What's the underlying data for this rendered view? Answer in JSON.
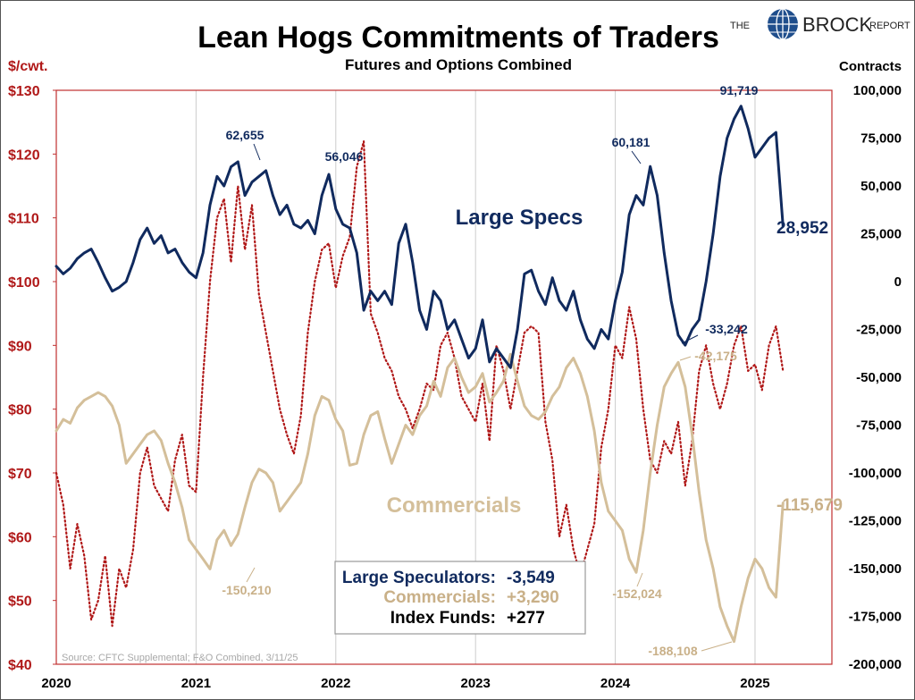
{
  "title": "Lean Hogs Commitments of Traders",
  "subtitle": "Futures and Options Combined",
  "logo": {
    "left_text": "THE",
    "main_text": "BROCK",
    "right_text": "REPORT"
  },
  "left_axis": {
    "unit_label": "$/cwt.",
    "ticks": [
      "$130",
      "$120",
      "$110",
      "$100",
      "$90",
      "$80",
      "$70",
      "$60",
      "$50",
      "$40"
    ]
  },
  "right_axis": {
    "unit_label": "Contracts",
    "ticks": [
      "100,000",
      "75,000",
      "50,000",
      "25,000",
      "0",
      "-25,000",
      "-50,000",
      "-75,000",
      "-100,000",
      "-125,000",
      "-150,000",
      "-175,000",
      "-200,000"
    ]
  },
  "x_axis": {
    "ticks": [
      "2020",
      "2021",
      "2022",
      "2023",
      "2024",
      "2025"
    ]
  },
  "series_labels": {
    "large_specs": "Large Specs",
    "commercials": "Commercials"
  },
  "annotations": {
    "specs_2021_peak": "62,655",
    "specs_2022_peak": "56,046",
    "specs_2024_peak": "60,181",
    "specs_2025_peak": "91,719",
    "specs_2024_low": "-33,242",
    "comm_2021_low": "-150,210",
    "comm_2024_low": "-152,024",
    "comm_2024_high": "-42,175",
    "comm_2025_low": "-188,108",
    "specs_end": "28,952",
    "comm_end": "-115,679"
  },
  "changes_box": [
    {
      "label": "Large Speculators:",
      "value": "-3,549"
    },
    {
      "label": "Commercials:",
      "value": "+3,290"
    },
    {
      "label": "Index Funds:",
      "value": "+277"
    }
  ],
  "source": "Source: CFTC Supplemental; F&O Combined, 3/11/25",
  "colors": {
    "large_specs": "#102a5e",
    "commercials": "#d4bf9a",
    "price": "#b01818",
    "grid": "#cccccc"
  },
  "chart_data": {
    "type": "line",
    "title": "Lean Hogs Commitments of Traders",
    "subtitle": "Futures and Options Combined",
    "y_left": {
      "label": "$/cwt.",
      "ylim": [
        40,
        130
      ]
    },
    "y_right": {
      "label": "Contracts",
      "ylim": [
        -200000,
        100000
      ]
    },
    "x_range": [
      2020.0,
      2025.55
    ],
    "grid": "vertical at year boundaries",
    "series": [
      {
        "name": "Large Specs",
        "axis": "right",
        "style": "solid",
        "x": [
          2020.0,
          2020.05,
          2020.1,
          2020.15,
          2020.2,
          2020.25,
          2020.3,
          2020.35,
          2020.4,
          2020.45,
          2020.5,
          2020.55,
          2020.6,
          2020.65,
          2020.7,
          2020.75,
          2020.8,
          2020.85,
          2020.9,
          2020.95,
          2021.0,
          2021.05,
          2021.1,
          2021.15,
          2021.2,
          2021.25,
          2021.3,
          2021.35,
          2021.4,
          2021.45,
          2021.5,
          2021.55,
          2021.6,
          2021.65,
          2021.7,
          2021.75,
          2021.8,
          2021.85,
          2021.9,
          2021.95,
          2022.0,
          2022.05,
          2022.1,
          2022.15,
          2022.2,
          2022.25,
          2022.3,
          2022.35,
          2022.4,
          2022.45,
          2022.5,
          2022.55,
          2022.6,
          2022.65,
          2022.7,
          2022.75,
          2022.8,
          2022.85,
          2022.9,
          2022.95,
          2023.0,
          2023.05,
          2023.1,
          2023.15,
          2023.2,
          2023.25,
          2023.3,
          2023.35,
          2023.4,
          2023.45,
          2023.5,
          2023.55,
          2023.6,
          2023.65,
          2023.7,
          2023.75,
          2023.8,
          2023.85,
          2023.9,
          2023.95,
          2024.0,
          2024.05,
          2024.1,
          2024.15,
          2024.2,
          2024.25,
          2024.3,
          2024.35,
          2024.4,
          2024.45,
          2024.5,
          2024.55,
          2024.6,
          2024.65,
          2024.7,
          2024.75,
          2024.8,
          2024.85,
          2024.9,
          2024.95,
          2025.0,
          2025.05,
          2025.1,
          2025.15,
          2025.2
        ],
        "values": [
          8000,
          4000,
          7000,
          12000,
          15000,
          17000,
          10000,
          2000,
          -5000,
          -3000,
          0,
          10000,
          22000,
          28000,
          20000,
          24000,
          15000,
          17000,
          10000,
          5000,
          2000,
          15000,
          40000,
          55000,
          50000,
          60000,
          62655,
          45000,
          52000,
          55000,
          58000,
          45000,
          35000,
          40000,
          30000,
          28000,
          32000,
          25000,
          45000,
          56046,
          38000,
          30000,
          28000,
          15000,
          -15000,
          -5000,
          -10000,
          -5000,
          -12000,
          20000,
          30000,
          10000,
          -15000,
          -25000,
          -5000,
          -10000,
          -25000,
          -20000,
          -30000,
          -40000,
          -35000,
          -20000,
          -42000,
          -35000,
          -40000,
          -45000,
          -25000,
          4000,
          6000,
          -5000,
          -12000,
          2000,
          -10000,
          -15000,
          -5000,
          -20000,
          -30000,
          -35000,
          -25000,
          -30000,
          -10000,
          5000,
          35000,
          45000,
          40000,
          60181,
          45000,
          15000,
          -10000,
          -28000,
          -33242,
          -25000,
          -20000,
          0,
          25000,
          55000,
          75000,
          85000,
          91719,
          80000,
          65000,
          70000,
          75000,
          78000,
          28952
        ]
      },
      {
        "name": "Commercials",
        "axis": "right",
        "style": "solid",
        "x": [
          2020.0,
          2020.05,
          2020.1,
          2020.15,
          2020.2,
          2020.25,
          2020.3,
          2020.35,
          2020.4,
          2020.45,
          2020.5,
          2020.55,
          2020.6,
          2020.65,
          2020.7,
          2020.75,
          2020.8,
          2020.85,
          2020.9,
          2020.95,
          2021.0,
          2021.05,
          2021.1,
          2021.15,
          2021.2,
          2021.25,
          2021.3,
          2021.35,
          2021.4,
          2021.45,
          2021.5,
          2021.55,
          2021.6,
          2021.65,
          2021.7,
          2021.75,
          2021.8,
          2021.85,
          2021.9,
          2021.95,
          2022.0,
          2022.05,
          2022.1,
          2022.15,
          2022.2,
          2022.25,
          2022.3,
          2022.35,
          2022.4,
          2022.45,
          2022.5,
          2022.55,
          2022.6,
          2022.65,
          2022.7,
          2022.75,
          2022.8,
          2022.85,
          2022.9,
          2022.95,
          2023.0,
          2023.05,
          2023.1,
          2023.15,
          2023.2,
          2023.25,
          2023.3,
          2023.35,
          2023.4,
          2023.45,
          2023.5,
          2023.55,
          2023.6,
          2023.65,
          2023.7,
          2023.75,
          2023.8,
          2023.85,
          2023.9,
          2023.95,
          2024.0,
          2024.05,
          2024.1,
          2024.15,
          2024.2,
          2024.25,
          2024.3,
          2024.35,
          2024.4,
          2024.45,
          2024.5,
          2024.55,
          2024.6,
          2024.65,
          2024.7,
          2024.75,
          2024.8,
          2024.85,
          2024.9,
          2024.95,
          2025.0,
          2025.05,
          2025.1,
          2025.15,
          2025.2
        ],
        "values": [
          -78000,
          -72000,
          -74000,
          -66000,
          -62000,
          -60000,
          -58000,
          -60000,
          -65000,
          -75000,
          -95000,
          -90000,
          -85000,
          -80000,
          -78000,
          -83000,
          -95000,
          -105000,
          -118000,
          -135000,
          -140000,
          -145000,
          -150210,
          -135000,
          -130000,
          -138000,
          -132000,
          -118000,
          -105000,
          -98000,
          -100000,
          -105000,
          -120000,
          -115000,
          -110000,
          -105000,
          -90000,
          -70000,
          -60000,
          -62000,
          -72000,
          -78000,
          -96000,
          -95000,
          -80000,
          -70000,
          -68000,
          -82000,
          -95000,
          -85000,
          -75000,
          -80000,
          -70000,
          -65000,
          -52000,
          -60000,
          -45000,
          -40000,
          -50000,
          -58000,
          -55000,
          -48000,
          -63000,
          -58000,
          -52000,
          -38000,
          -52000,
          -65000,
          -70000,
          -72000,
          -68000,
          -60000,
          -55000,
          -45000,
          -40000,
          -48000,
          -60000,
          -78000,
          -105000,
          -120000,
          -125000,
          -130000,
          -145000,
          -152024,
          -130000,
          -100000,
          -75000,
          -55000,
          -48000,
          -42175,
          -55000,
          -80000,
          -110000,
          -135000,
          -150000,
          -170000,
          -180000,
          -188108,
          -170000,
          -155000,
          -145000,
          -150000,
          -160000,
          -165000,
          -115679
        ]
      },
      {
        "name": "Lean Hog Price",
        "axis": "left",
        "style": "dotted",
        "x": [
          2020.0,
          2020.05,
          2020.1,
          2020.15,
          2020.2,
          2020.25,
          2020.3,
          2020.35,
          2020.4,
          2020.45,
          2020.5,
          2020.55,
          2020.6,
          2020.65,
          2020.7,
          2020.75,
          2020.8,
          2020.85,
          2020.9,
          2020.95,
          2021.0,
          2021.05,
          2021.1,
          2021.15,
          2021.2,
          2021.25,
          2021.3,
          2021.35,
          2021.4,
          2021.45,
          2021.5,
          2021.55,
          2021.6,
          2021.65,
          2021.7,
          2021.75,
          2021.8,
          2021.85,
          2021.9,
          2021.95,
          2022.0,
          2022.05,
          2022.1,
          2022.15,
          2022.2,
          2022.25,
          2022.3,
          2022.35,
          2022.4,
          2022.45,
          2022.5,
          2022.55,
          2022.6,
          2022.65,
          2022.7,
          2022.75,
          2022.8,
          2022.85,
          2022.9,
          2022.95,
          2023.0,
          2023.05,
          2023.1,
          2023.15,
          2023.2,
          2023.25,
          2023.3,
          2023.35,
          2023.4,
          2023.45,
          2023.5,
          2023.55,
          2023.6,
          2023.65,
          2023.7,
          2023.75,
          2023.8,
          2023.85,
          2023.9,
          2023.95,
          2024.0,
          2024.05,
          2024.1,
          2024.15,
          2024.2,
          2024.25,
          2024.3,
          2024.35,
          2024.4,
          2024.45,
          2024.5,
          2024.55,
          2024.6,
          2024.65,
          2024.7,
          2024.75,
          2024.8,
          2024.85,
          2024.9,
          2024.95,
          2025.0,
          2025.05,
          2025.1,
          2025.15,
          2025.2
        ],
        "values": [
          70,
          65,
          55,
          62,
          57,
          47,
          50,
          57,
          46,
          55,
          52,
          58,
          70,
          74,
          68,
          66,
          64,
          72,
          76,
          68,
          67,
          85,
          100,
          110,
          113,
          103,
          115,
          105,
          112,
          98,
          92,
          86,
          80,
          76,
          73,
          79,
          92,
          100,
          105,
          106,
          99,
          104,
          107,
          118,
          122,
          95,
          92,
          88,
          86,
          82,
          80,
          77,
          80,
          84,
          83,
          90,
          92,
          88,
          82,
          80,
          78,
          84,
          75,
          90,
          86,
          80,
          86,
          92,
          93,
          92,
          78,
          72,
          60,
          65,
          58,
          54,
          58,
          62,
          74,
          80,
          90,
          88,
          96,
          91,
          80,
          72,
          70,
          75,
          73,
          78,
          68,
          75,
          86,
          90,
          84,
          80,
          84,
          90,
          93,
          86,
          87,
          83,
          90,
          93,
          86
        ]
      }
    ]
  }
}
